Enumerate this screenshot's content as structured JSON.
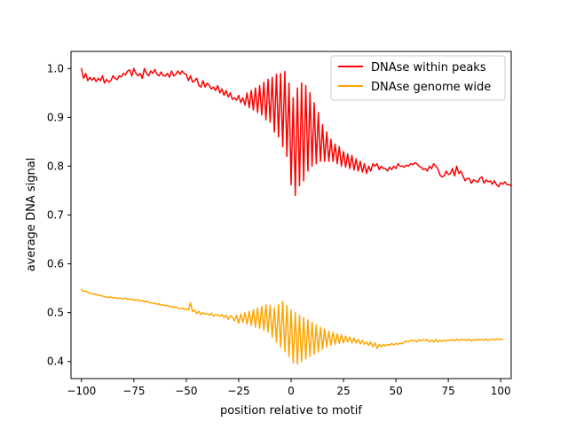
{
  "chart_data": {
    "type": "line",
    "title": "",
    "xlabel": "position relative to motif",
    "ylabel": "average DNA signal",
    "xlim": [
      -105,
      105
    ],
    "ylim": [
      0.365,
      1.035
    ],
    "xticks": [
      -100,
      -75,
      -50,
      -25,
      0,
      25,
      50,
      75,
      100
    ],
    "xtick_labels": [
      "−100",
      "−75",
      "−50",
      "−25",
      "0",
      "25",
      "50",
      "75",
      "100"
    ],
    "yticks": [
      0.4,
      0.5,
      0.6,
      0.7,
      0.8,
      0.9,
      1.0
    ],
    "ytick_labels": [
      "0.4",
      "0.5",
      "0.6",
      "0.7",
      "0.8",
      "0.9",
      "1.0"
    ],
    "grid": false,
    "legend_position": "top-right",
    "x_start": -100,
    "x_step": 1,
    "series": [
      {
        "name": "DNAse within peaks",
        "color": "#ff0000",
        "values": [
          1.0,
          0.98,
          0.99,
          0.975,
          0.982,
          0.976,
          0.981,
          0.973,
          0.98,
          0.975,
          0.985,
          0.97,
          0.978,
          0.972,
          0.975,
          0.985,
          0.98,
          0.977,
          0.985,
          0.983,
          0.99,
          0.987,
          0.995,
          0.997,
          0.985,
          1.0,
          0.99,
          0.985,
          0.99,
          0.98,
          1.0,
          0.99,
          0.985,
          0.995,
          0.99,
          0.998,
          0.988,
          0.985,
          0.993,
          0.985,
          0.985,
          0.99,
          0.982,
          0.995,
          0.985,
          0.988,
          0.995,
          0.988,
          0.995,
          0.99,
          0.988,
          0.975,
          0.985,
          0.972,
          0.975,
          0.98,
          0.965,
          0.962,
          0.975,
          0.962,
          0.97,
          0.965,
          0.958,
          0.962,
          0.955,
          0.965,
          0.95,
          0.958,
          0.945,
          0.955,
          0.942,
          0.95,
          0.937,
          0.94,
          0.935,
          0.945,
          0.93,
          0.94,
          0.925,
          0.95,
          0.92,
          0.955,
          0.915,
          0.96,
          0.91,
          0.965,
          0.905,
          0.972,
          0.895,
          0.978,
          0.89,
          0.982,
          0.87,
          0.988,
          0.86,
          0.99,
          0.84,
          0.994,
          0.82,
          0.97,
          0.762,
          0.94,
          0.74,
          0.96,
          0.76,
          0.97,
          0.77,
          0.965,
          0.79,
          0.95,
          0.8,
          0.93,
          0.805,
          0.91,
          0.81,
          0.885,
          0.81,
          0.87,
          0.81,
          0.855,
          0.81,
          0.845,
          0.805,
          0.84,
          0.8,
          0.83,
          0.798,
          0.825,
          0.795,
          0.822,
          0.792,
          0.815,
          0.79,
          0.81,
          0.788,
          0.805,
          0.785,
          0.8,
          0.79,
          0.805,
          0.8,
          0.805,
          0.793,
          0.8,
          0.795,
          0.795,
          0.79,
          0.798,
          0.793,
          0.8,
          0.795,
          0.805,
          0.8,
          0.8,
          0.798,
          0.802,
          0.8,
          0.805,
          0.803,
          0.807,
          0.805,
          0.8,
          0.798,
          0.793,
          0.795,
          0.79,
          0.8,
          0.795,
          0.805,
          0.8,
          0.795,
          0.782,
          0.778,
          0.78,
          0.79,
          0.783,
          0.785,
          0.795,
          0.78,
          0.8,
          0.785,
          0.79,
          0.78,
          0.77,
          0.775,
          0.775,
          0.765,
          0.772,
          0.77,
          0.767,
          0.775,
          0.778,
          0.765,
          0.772,
          0.768,
          0.77,
          0.763,
          0.77,
          0.762,
          0.758,
          0.766,
          0.763,
          0.768,
          0.762,
          0.762,
          0.76
        ],
        "label_color": "#000000"
      },
      {
        "name": "DNAse genome wide",
        "color": "#ffa500",
        "values": [
          0.548,
          0.543,
          0.545,
          0.541,
          0.54,
          0.539,
          0.537,
          0.538,
          0.535,
          0.535,
          0.534,
          0.533,
          0.532,
          0.531,
          0.532,
          0.53,
          0.531,
          0.529,
          0.53,
          0.529,
          0.528,
          0.53,
          0.527,
          0.528,
          0.526,
          0.527,
          0.525,
          0.527,
          0.523,
          0.525,
          0.522,
          0.524,
          0.521,
          0.52,
          0.519,
          0.52,
          0.517,
          0.518,
          0.515,
          0.516,
          0.514,
          0.515,
          0.512,
          0.513,
          0.51,
          0.512,
          0.509,
          0.508,
          0.51,
          0.506,
          0.508,
          0.505,
          0.52,
          0.502,
          0.505,
          0.498,
          0.503,
          0.496,
          0.5,
          0.497,
          0.498,
          0.495,
          0.499,
          0.493,
          0.496,
          0.495,
          0.493,
          0.496,
          0.49,
          0.495,
          0.486,
          0.494,
          0.49,
          0.483,
          0.495,
          0.478,
          0.497,
          0.48,
          0.5,
          0.476,
          0.503,
          0.474,
          0.506,
          0.47,
          0.51,
          0.468,
          0.513,
          0.464,
          0.516,
          0.46,
          0.515,
          0.45,
          0.51,
          0.44,
          0.517,
          0.43,
          0.523,
          0.42,
          0.515,
          0.41,
          0.505,
          0.397,
          0.5,
          0.395,
          0.495,
          0.4,
          0.49,
          0.405,
          0.485,
          0.41,
          0.48,
          0.415,
          0.475,
          0.42,
          0.47,
          0.425,
          0.466,
          0.43,
          0.462,
          0.433,
          0.46,
          0.435,
          0.457,
          0.437,
          0.455,
          0.438,
          0.452,
          0.44,
          0.45,
          0.438,
          0.448,
          0.438,
          0.445,
          0.436,
          0.443,
          0.435,
          0.44,
          0.433,
          0.44,
          0.43,
          0.438,
          0.427,
          0.435,
          0.43,
          0.435,
          0.432,
          0.435,
          0.433,
          0.437,
          0.434,
          0.437,
          0.435,
          0.438,
          0.436,
          0.44,
          0.442,
          0.44,
          0.444,
          0.442,
          0.443,
          0.44,
          0.445,
          0.442,
          0.445,
          0.443,
          0.445,
          0.44,
          0.444,
          0.44,
          0.445,
          0.44,
          0.444,
          0.441,
          0.444,
          0.442,
          0.444,
          0.443,
          0.445,
          0.442,
          0.446,
          0.443,
          0.445,
          0.444,
          0.445,
          0.443,
          0.446,
          0.442,
          0.445,
          0.443,
          0.446,
          0.444,
          0.445,
          0.443,
          0.446,
          0.443,
          0.445,
          0.446,
          0.444,
          0.446,
          0.445,
          0.446,
          0.445
        ]
      }
    ]
  }
}
